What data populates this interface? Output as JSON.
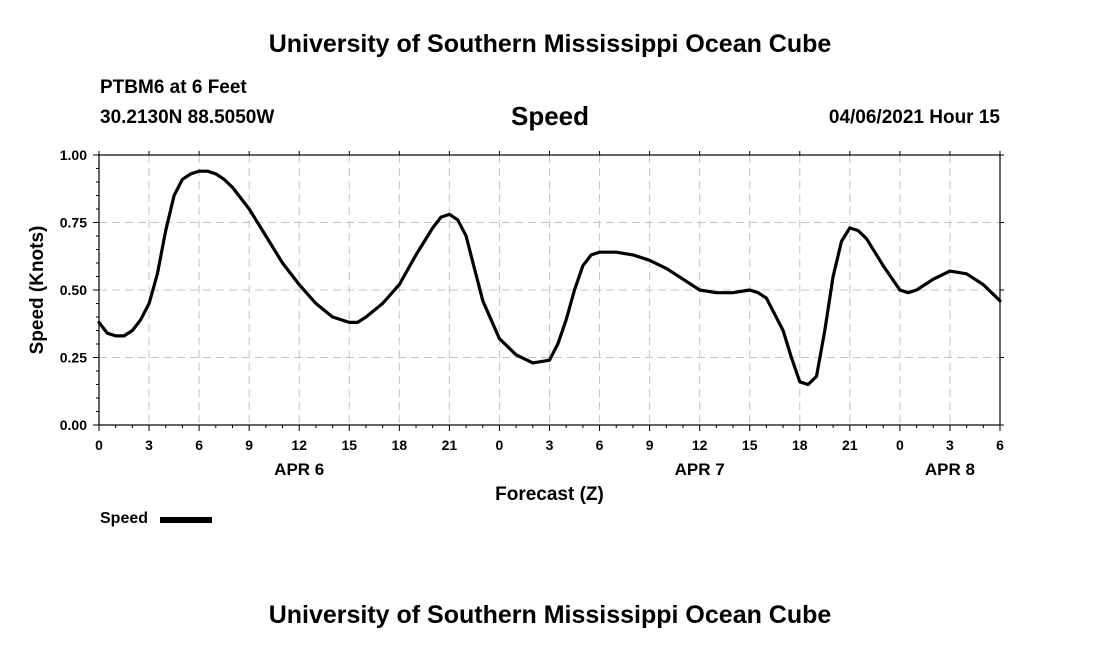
{
  "header": {
    "title": "University of Southern Mississippi Ocean Cube",
    "station": "PTBM6 at 6 Feet",
    "coords": "30.2130N  88.5050W",
    "chart_title": "Speed",
    "datetime": "04/06/2021 Hour 15"
  },
  "footer": {
    "title": "University of Southern Mississippi Ocean Cube"
  },
  "legend": {
    "label": "Speed",
    "color": "#000000"
  },
  "chart_data": {
    "type": "line",
    "title": "Speed",
    "xlabel": "Forecast (Z)",
    "ylabel": "Speed (Knots)",
    "ylim": [
      0,
      1
    ],
    "xlim": [
      0,
      54
    ],
    "grid": true,
    "legend_position": "bottom-left",
    "y_ticks": [
      "0.00",
      "0.25",
      "0.50",
      "0.75",
      "1.00"
    ],
    "x_ticks": [
      {
        "h": 0,
        "label": "0"
      },
      {
        "h": 3,
        "label": "3"
      },
      {
        "h": 6,
        "label": "6"
      },
      {
        "h": 9,
        "label": "9"
      },
      {
        "h": 12,
        "label": "12"
      },
      {
        "h": 15,
        "label": "15"
      },
      {
        "h": 18,
        "label": "18"
      },
      {
        "h": 21,
        "label": "21"
      },
      {
        "h": 24,
        "label": "0"
      },
      {
        "h": 27,
        "label": "3"
      },
      {
        "h": 30,
        "label": "6"
      },
      {
        "h": 33,
        "label": "9"
      },
      {
        "h": 36,
        "label": "12"
      },
      {
        "h": 39,
        "label": "15"
      },
      {
        "h": 42,
        "label": "18"
      },
      {
        "h": 45,
        "label": "21"
      },
      {
        "h": 48,
        "label": "0"
      },
      {
        "h": 51,
        "label": "3"
      },
      {
        "h": 54,
        "label": "6"
      }
    ],
    "day_labels": [
      {
        "h": 12,
        "label": "APR 6"
      },
      {
        "h": 36,
        "label": "APR 7"
      },
      {
        "h": 51,
        "label": "APR 8"
      }
    ],
    "series": [
      {
        "name": "Speed",
        "color": "#000000",
        "x": [
          0,
          0.5,
          1,
          1.5,
          2,
          2.5,
          3,
          3.5,
          4,
          4.5,
          5,
          5.5,
          6,
          6.5,
          7,
          7.5,
          8,
          9,
          10,
          11,
          12,
          13,
          14,
          15,
          15.5,
          16,
          17,
          18,
          19,
          20,
          20.5,
          21,
          21.5,
          22,
          22.5,
          23,
          24,
          25,
          26,
          27,
          27.5,
          28,
          28.5,
          29,
          29.5,
          30,
          30.5,
          31,
          32,
          33,
          34,
          35,
          36,
          37,
          38,
          39,
          39.5,
          40,
          41,
          41.5,
          42,
          42.5,
          43,
          43.5,
          44,
          44.5,
          45,
          45.5,
          46,
          46.5,
          47,
          48,
          48.5,
          49,
          50,
          51,
          52,
          53,
          54
        ],
        "y": [
          0.38,
          0.34,
          0.33,
          0.33,
          0.35,
          0.39,
          0.45,
          0.56,
          0.72,
          0.85,
          0.91,
          0.93,
          0.94,
          0.94,
          0.93,
          0.91,
          0.88,
          0.8,
          0.7,
          0.6,
          0.52,
          0.45,
          0.4,
          0.38,
          0.38,
          0.4,
          0.45,
          0.52,
          0.63,
          0.73,
          0.77,
          0.78,
          0.76,
          0.7,
          0.58,
          0.46,
          0.32,
          0.26,
          0.23,
          0.24,
          0.3,
          0.39,
          0.5,
          0.59,
          0.63,
          0.64,
          0.64,
          0.64,
          0.63,
          0.61,
          0.58,
          0.54,
          0.5,
          0.49,
          0.49,
          0.5,
          0.49,
          0.47,
          0.35,
          0.25,
          0.16,
          0.15,
          0.18,
          0.35,
          0.55,
          0.68,
          0.73,
          0.72,
          0.69,
          0.64,
          0.59,
          0.5,
          0.49,
          0.5,
          0.54,
          0.57,
          0.56,
          0.52,
          0.46
        ]
      }
    ]
  }
}
